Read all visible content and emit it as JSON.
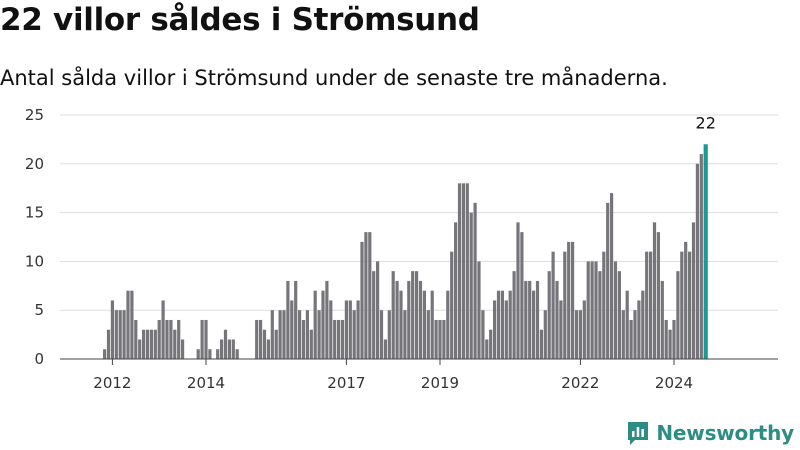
{
  "title": "22 villor såldes i Strömsund",
  "subtitle": "Antal sålda villor i Strömsund under de senaste tre månaderna.",
  "brand": "Newsworthy",
  "colors": {
    "bar": "#76757a",
    "highlight": "#1a9a92",
    "grid": "#dddddd",
    "axis": "#444444",
    "brand": "#2d8c84"
  },
  "chart_data": {
    "type": "bar",
    "yticks": [
      0,
      5,
      10,
      15,
      20,
      25
    ],
    "ylim": [
      0,
      25
    ],
    "xticks": [
      "2012",
      "2014",
      "2017",
      "2019",
      "2022",
      "2024"
    ],
    "grid": true,
    "values": [
      0,
      0,
      0,
      0,
      0,
      0,
      0,
      0,
      0,
      0,
      1,
      3,
      6,
      5,
      5,
      5,
      7,
      7,
      4,
      2,
      3,
      3,
      3,
      3,
      4,
      6,
      4,
      4,
      3,
      4,
      2,
      0,
      0,
      0,
      1,
      4,
      4,
      1,
      0,
      1,
      2,
      3,
      2,
      2,
      1,
      0,
      0,
      0,
      0,
      4,
      4,
      3,
      2,
      5,
      3,
      5,
      5,
      8,
      6,
      8,
      5,
      4,
      5,
      3,
      7,
      5,
      7,
      8,
      6,
      4,
      4,
      4,
      6,
      6,
      5,
      6,
      12,
      13,
      13,
      9,
      10,
      5,
      2,
      5,
      9,
      8,
      7,
      5,
      8,
      9,
      9,
      8,
      7,
      5,
      7,
      4,
      4,
      4,
      7,
      11,
      14,
      18,
      18,
      18,
      15,
      16,
      10,
      5,
      2,
      3,
      6,
      7,
      7,
      6,
      7,
      9,
      14,
      13,
      8,
      8,
      7,
      8,
      3,
      5,
      9,
      11,
      8,
      6,
      11,
      12,
      12,
      5,
      5,
      6,
      10,
      10,
      10,
      9,
      11,
      16,
      17,
      10,
      9,
      5,
      7,
      4,
      5,
      6,
      7,
      11,
      11,
      14,
      13,
      8,
      4,
      3,
      4,
      9,
      11,
      12,
      11,
      14,
      20,
      21,
      22
    ],
    "highlight_last": true,
    "annotation": "22"
  }
}
